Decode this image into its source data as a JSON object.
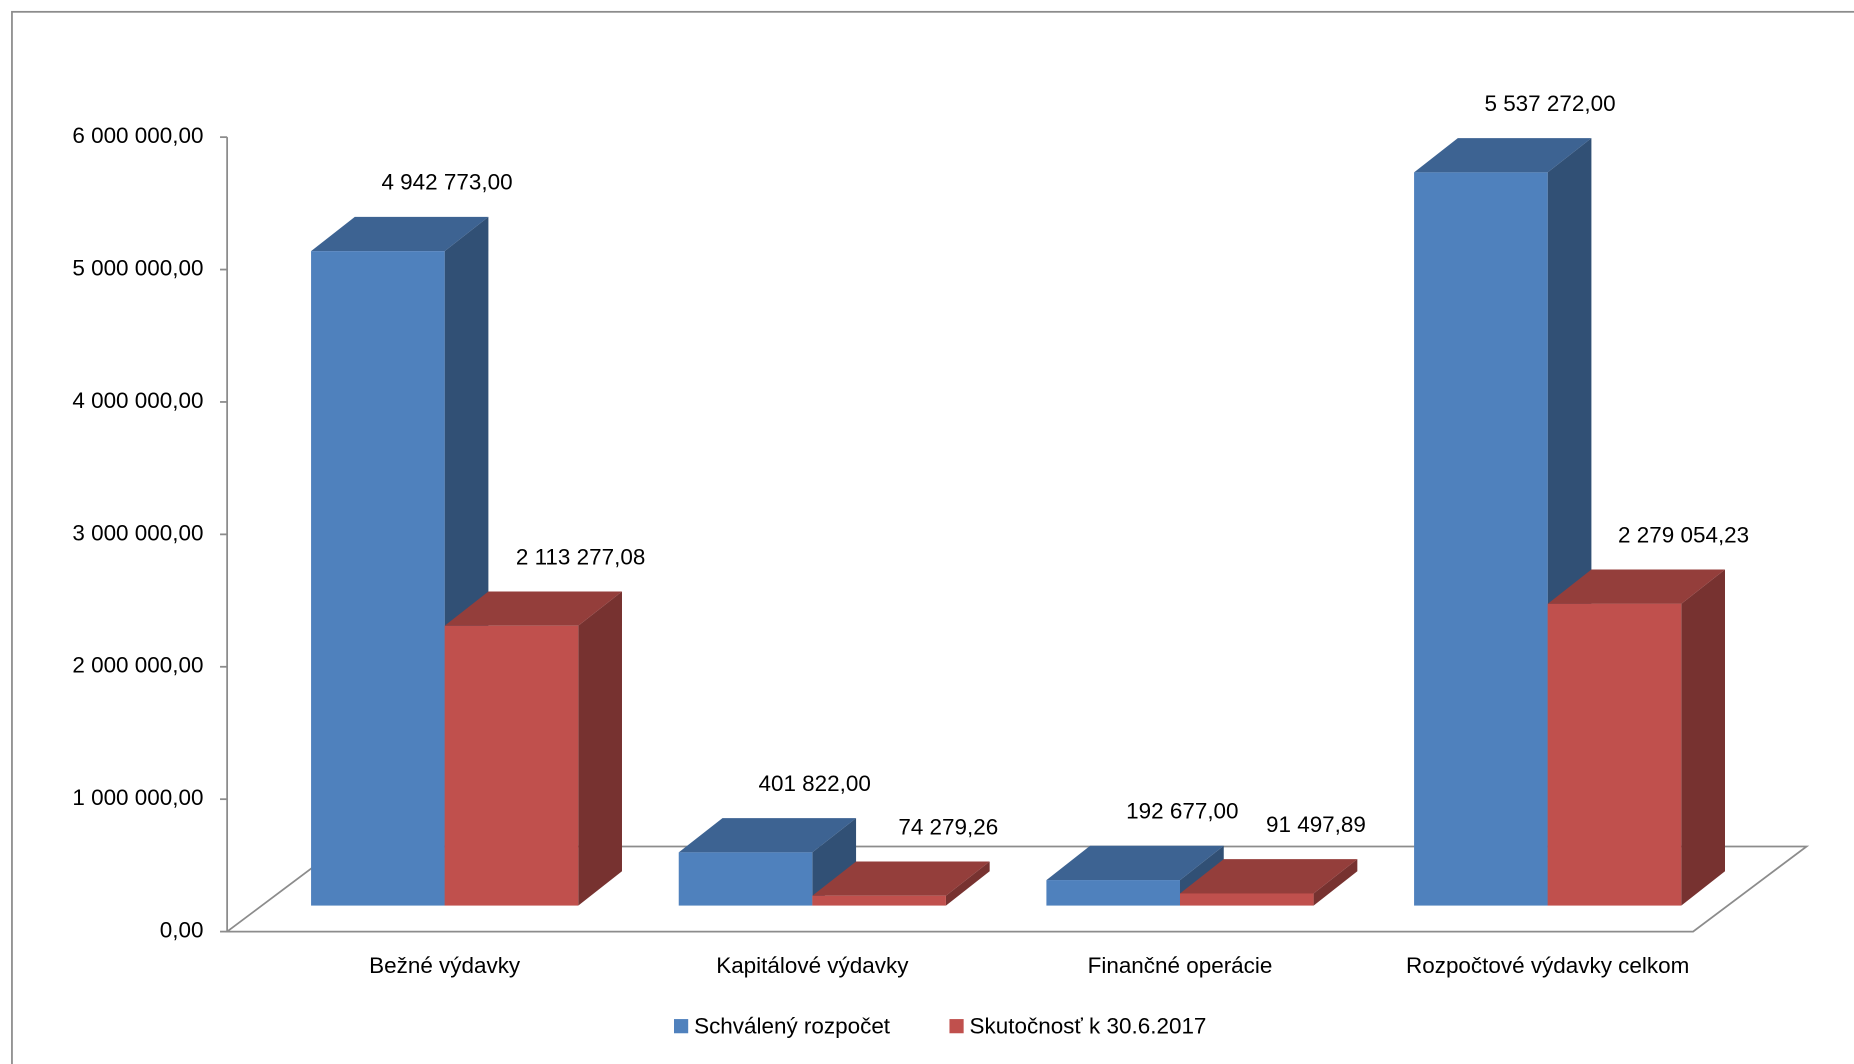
{
  "chart_data": {
    "type": "bar",
    "categories": [
      "Bežné výdavky",
      "Kapitálové výdavky",
      "Finančné operácie",
      "Rozpočtové výdavky celkom"
    ],
    "series": [
      {
        "name": "Schválený rozpočet",
        "color": "#4f81bd",
        "values": [
          4942773.0,
          401822.0,
          192677.0,
          5537272.0
        ],
        "value_labels": [
          "4 942 773,00",
          "401 822,00",
          "192 677,00",
          "5 537 272,00"
        ]
      },
      {
        "name": "Skutočnosť k 30.6.2017",
        "color": "#c0504d",
        "values": [
          2113277.08,
          74279.26,
          91497.89,
          2279054.23
        ],
        "value_labels": [
          "2 113 277,08",
          "74 279,26",
          "91 497,89",
          "2 279 054,23"
        ]
      }
    ],
    "ylim": [
      0,
      6000000
    ],
    "yticks": [
      {
        "value": 0,
        "label": "0,00"
      },
      {
        "value": 1000000,
        "label": "1 000 000,00"
      },
      {
        "value": 2000000,
        "label": "2 000 000,00"
      },
      {
        "value": 3000000,
        "label": "3 000 000,00"
      },
      {
        "value": 4000000,
        "label": "4 000 000,00"
      },
      {
        "value": 5000000,
        "label": "5 000 000,00"
      },
      {
        "value": 6000000,
        "label": "6 000 000,00"
      }
    ],
    "legend": "bottom"
  }
}
